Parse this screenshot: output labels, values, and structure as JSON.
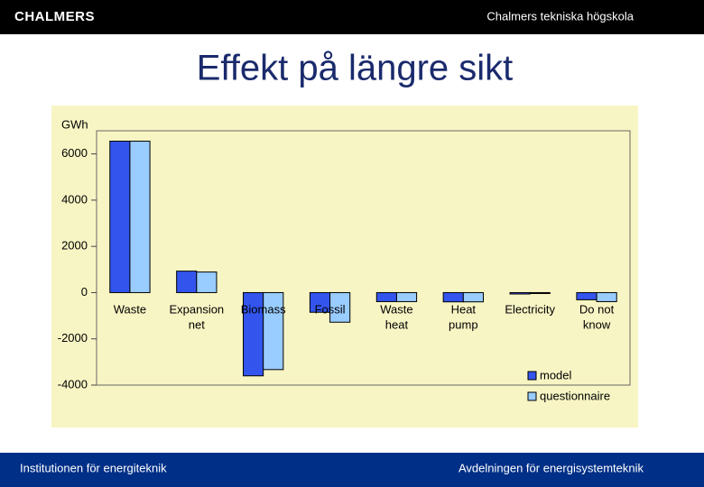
{
  "header": {
    "logo": "CHALMERS",
    "school": "Chalmers tekniska högskola"
  },
  "slide_title": "Effekt på längre sikt",
  "footer": {
    "left": "Institutionen för energiteknik",
    "right": "Avdelningen för energisystemteknik"
  },
  "chart_data": {
    "type": "bar",
    "y_label": "GWh",
    "categories": [
      "Waste",
      "Expansion\nnet",
      "Biomass",
      "Fossil",
      "Waste\nheat",
      "Heat\npump",
      "Electricity",
      "Do not\nknow"
    ],
    "series": [
      {
        "name": "model",
        "color": "#3355ee",
        "values": [
          6550,
          930,
          -3600,
          -850,
          -390,
          -400,
          -60,
          -310
        ]
      },
      {
        "name": "questionnaire",
        "color": "#99ccff",
        "values": [
          6550,
          890,
          -3330,
          -1280,
          -390,
          -400,
          0,
          -390
        ]
      }
    ],
    "ylim": [
      -4000,
      7000
    ],
    "yticks": [
      -4000,
      -2000,
      0,
      2000,
      4000,
      6000
    ],
    "grid": false,
    "legend": "bottom-right"
  }
}
